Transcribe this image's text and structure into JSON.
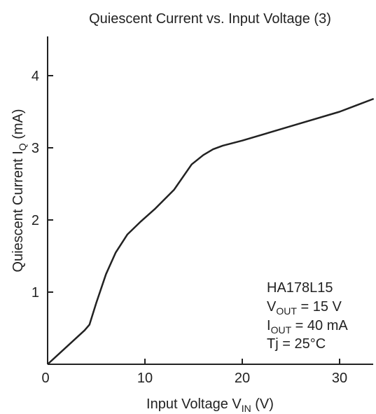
{
  "chart_data": {
    "type": "line",
    "title": "Quiescent Current vs. Input Voltage (3)",
    "xlabel": {
      "main": "Input Voltage  V",
      "sub": "IN",
      "unit": "  (V)"
    },
    "ylabel": {
      "main": "Quiescent Current  I",
      "sub": "Q",
      "unit": "  (mA)"
    },
    "xlim": [
      0,
      35
    ],
    "ylim": [
      0,
      4.5
    ],
    "x_ticks": [
      0,
      10,
      20,
      30
    ],
    "y_ticks": [
      1,
      2,
      3,
      4
    ],
    "x_tick_labels": [
      "0",
      "10",
      "20",
      "30"
    ],
    "y_tick_labels": [
      "1",
      "2",
      "3",
      "4"
    ],
    "grid": false,
    "series": [
      {
        "x": [
          0,
          3.8,
          4.3,
          5.0,
          6.0,
          7.0,
          8.2,
          9.5,
          11,
          13,
          14.8,
          16,
          17,
          18,
          20,
          25,
          30,
          33.5
        ],
        "y": [
          0,
          0.47,
          0.55,
          0.85,
          1.25,
          1.55,
          1.8,
          1.97,
          2.15,
          2.42,
          2.77,
          2.9,
          2.98,
          3.03,
          3.1,
          3.3,
          3.5,
          3.68
        ]
      }
    ],
    "annotation": {
      "device": "HA178L15",
      "vout": {
        "main": "V",
        "sub": "OUT",
        "rest": " = 15 V"
      },
      "iout": {
        "main": "I",
        "sub": "OUT",
        "rest": " = 40 mA"
      },
      "tj": "Tj = 25°C"
    },
    "colors": {
      "line": "#222222",
      "axis": "#222222"
    }
  }
}
